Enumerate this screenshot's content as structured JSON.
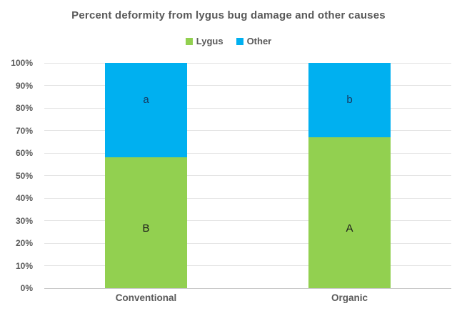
{
  "chart_data": {
    "type": "bar",
    "stacked": true,
    "percent_stacked": true,
    "title": "Percent deformity from lygus bug damage and other causes",
    "categories": [
      "Conventional",
      "Organic"
    ],
    "series": [
      {
        "name": "Lygus",
        "color": "#92D050",
        "values": [
          58,
          67
        ],
        "data_labels": [
          "B",
          "A"
        ],
        "label_color": "#1A1A1A"
      },
      {
        "name": "Other",
        "color": "#00B0F0",
        "values": [
          42,
          33
        ],
        "data_labels": [
          "a",
          "b"
        ],
        "label_color": "#17375E"
      }
    ],
    "xlabel": "",
    "ylabel": "",
    "ylim": [
      0,
      100
    ],
    "yticks": [
      "0%",
      "10%",
      "20%",
      "30%",
      "40%",
      "50%",
      "60%",
      "70%",
      "80%",
      "90%",
      "100%"
    ],
    "grid": true,
    "legend_position": "top",
    "colors": {
      "title_text": "#595959",
      "axis_text": "#595959",
      "gridline": "#E4E4E4",
      "axis_line": "#C8C8C8",
      "background": "#FFFFFF"
    }
  }
}
